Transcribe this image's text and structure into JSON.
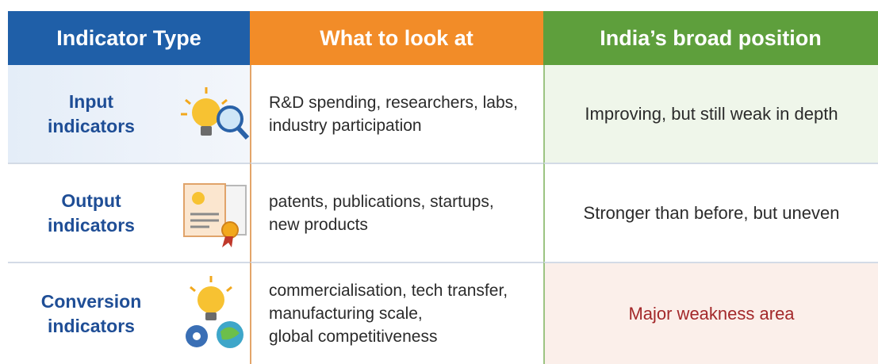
{
  "header": {
    "columns": [
      "Indicator Type",
      "What to look at",
      "India’s broad position"
    ]
  },
  "table": {
    "rows": [
      {
        "indicator": [
          "Input",
          "indicators"
        ],
        "look_at": [
          "R&D spending, researchers, labs,",
          "industry participation"
        ],
        "position": "Improving, but still weak in depth"
      },
      {
        "indicator": [
          "Output",
          "indicators"
        ],
        "look_at": [
          "patents, publications, startups,",
          "new products"
        ],
        "position": "Stronger than before, but uneven"
      },
      {
        "indicator": [
          "Conversion",
          "indicators"
        ],
        "look_at": [
          "commercialisation, tech transfer,",
          "manufacturing scale,",
          "global competitiveness"
        ],
        "position": "Major weakness area"
      }
    ]
  }
}
